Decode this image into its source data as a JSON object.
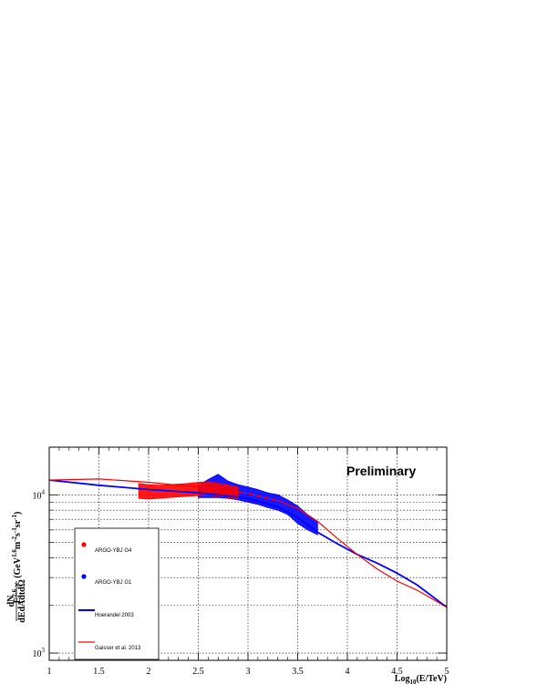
{
  "chart_data": {
    "type": "line",
    "annotation": "Preliminary",
    "xlabel": "Log10(E/TeV)",
    "xlabel_main": "Log",
    "xlabel_sub": "10",
    "xlabel_rest": "(E/TeV)",
    "ylabel": "E^2.6 × dN/dEdAdtdΩ (GeV^1.6 m^-2 s^-1 sr^-1)",
    "ylabel_prefix": "E",
    "ylabel_power": "2.6",
    "ylabel_times": "×",
    "ylabel_numerator": "dN",
    "ylabel_denominator": "dEdAdtdΩ",
    "ylabel_units": "(GeV",
    "ylabel_units_exp": "1.6",
    "ylabel_units_rest": "m",
    "ylabel_units_exp2": "-2",
    "ylabel_units_rest2": "s",
    "ylabel_units_exp3": "-1",
    "ylabel_units_rest3": "sr",
    "ylabel_units_exp4": "-1",
    "ylabel_units_close": ")",
    "xlim": [
      1,
      5
    ],
    "ylim": [
      900,
      20000
    ],
    "y_scale": "log",
    "grid": true,
    "x_ticks": [
      {
        "value": 1,
        "label": "1"
      },
      {
        "value": 1.5,
        "label": "1.5"
      },
      {
        "value": 2,
        "label": "2"
      },
      {
        "value": 2.5,
        "label": "2.5"
      },
      {
        "value": 3,
        "label": "3"
      },
      {
        "value": 3.5,
        "label": "3.5"
      },
      {
        "value": 4,
        "label": "4"
      },
      {
        "value": 4.5,
        "label": "4.5"
      },
      {
        "value": 5,
        "label": "5"
      }
    ],
    "y_ticks_major": [
      {
        "value": 1000,
        "base": "10",
        "exp": "3"
      },
      {
        "value": 10000,
        "base": "10",
        "exp": "4"
      }
    ],
    "y_ticks_minor": [
      2000,
      3000,
      4000,
      5000,
      6000,
      7000,
      8000,
      9000
    ],
    "legend_position": "bottom-left",
    "series": [
      {
        "name": "ARGO-YBJ G4",
        "kind": "band",
        "color": "#ff0000",
        "x": [
          1.9,
          2.0,
          2.1,
          2.2,
          2.3,
          2.4,
          2.5,
          2.6,
          2.7,
          2.8,
          2.9
        ],
        "upper": [
          11800,
          11600,
          11500,
          11600,
          11700,
          11800,
          12000,
          12100,
          11800,
          11500,
          11200
        ],
        "lower": [
          9500,
          9400,
          9500,
          9600,
          9700,
          9800,
          9900,
          10000,
          9800,
          9600,
          9400
        ]
      },
      {
        "name": "ARGO-YBJ G1",
        "kind": "band",
        "color": "#0000ff",
        "x": [
          2.5,
          2.6,
          2.7,
          2.8,
          2.9,
          3.0,
          3.1,
          3.2,
          3.3,
          3.4,
          3.5,
          3.6,
          3.7
        ],
        "upper": [
          11500,
          12500,
          13500,
          12200,
          11600,
          11200,
          10800,
          10300,
          10000,
          9300,
          8500,
          7500,
          6800
        ],
        "lower": [
          9600,
          9600,
          9600,
          9500,
          9300,
          9000,
          8700,
          8300,
          8000,
          7500,
          6600,
          6000,
          5600
        ]
      },
      {
        "name": "Hoerandel 2003",
        "kind": "line",
        "color": "#0000ff",
        "x": [
          1.0,
          1.5,
          2.0,
          2.5,
          3.0,
          3.3,
          3.5,
          3.7,
          3.9,
          4.1,
          4.3,
          4.5,
          4.7,
          5.0
        ],
        "values": [
          12400,
          11500,
          10800,
          10300,
          9500,
          8400,
          7200,
          5800,
          4900,
          4200,
          3700,
          3200,
          2700,
          1950
        ]
      },
      {
        "name": "Gaisser et al. 2013",
        "kind": "line",
        "color": "#ff0000",
        "x": [
          1.0,
          1.5,
          2.0,
          2.5,
          3.0,
          3.3,
          3.5,
          3.7,
          3.9,
          4.1,
          4.3,
          4.5,
          4.7,
          5.0
        ],
        "values": [
          12400,
          12600,
          12000,
          11200,
          10200,
          9200,
          8200,
          6800,
          5300,
          4200,
          3400,
          2850,
          2500,
          1950
        ]
      }
    ]
  },
  "legend": {
    "g4_label": "ARGO-YBJ G4",
    "g1_label": "ARGO-YBJ G1",
    "hoerandel_label": "Hoerandel 2003",
    "gaisser_label": "Gaisser et al. 2013"
  }
}
